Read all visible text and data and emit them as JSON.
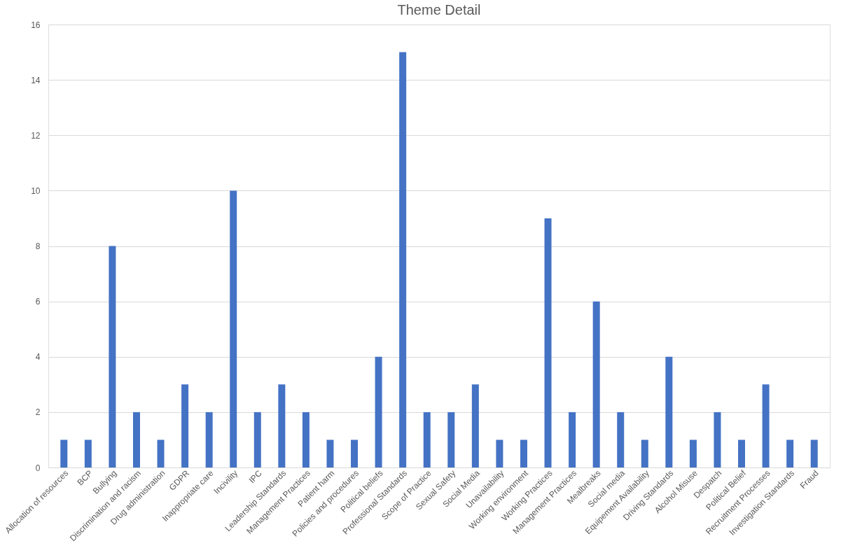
{
  "chart_data": {
    "type": "bar",
    "title": "Theme Detail",
    "categories": [
      "Allocation of resources",
      "BCP",
      "Bullying",
      "Discrimination and racism",
      "Drug administration",
      "GDPR",
      "Inappropriate care",
      "Incivility",
      "IPC",
      "Leadership Standards",
      "Management Practices",
      "Patient harm",
      "Policies and procedures",
      "Political beliefs",
      "Professional Standards",
      "Scope of Practice",
      "Sexual Safety",
      "Social Media",
      "Unavailability",
      "Working environment",
      "Working Practices",
      "Management Practices",
      "Mealbreaks",
      "Social media",
      "Equipement Availability",
      "Driving Standards",
      "Alcohol Misuse",
      "Despatch",
      "Political Belief",
      "Recruitment Processes",
      "Investigation Standards",
      "Fraud"
    ],
    "values": [
      1,
      1,
      8,
      2,
      1,
      3,
      2,
      10,
      2,
      3,
      2,
      1,
      1,
      4,
      15,
      2,
      2,
      3,
      1,
      1,
      9,
      2,
      6,
      2,
      1,
      4,
      1,
      2,
      1,
      3,
      1,
      1
    ],
    "color": "#4472c4",
    "ylim": [
      0,
      16
    ],
    "yticks": [
      0,
      2,
      4,
      6,
      8,
      10,
      12,
      14,
      16
    ],
    "grid": "y"
  }
}
